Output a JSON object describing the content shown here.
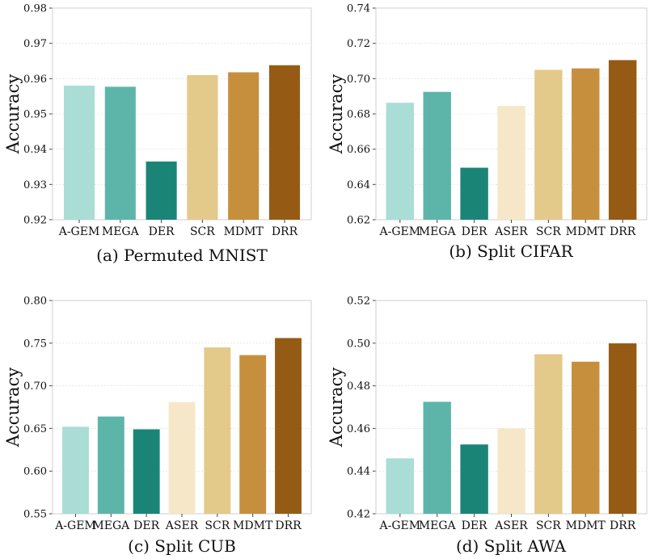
{
  "colors": {
    "A-GEM": "#a9ddd6",
    "MEGA": "#5db5aa",
    "DER": "#1a8577",
    "ASER": "#f5e7c8",
    "SCR": "#e3c98a",
    "MDMT": "#c68f3e",
    "DRR": "#955b14"
  },
  "chart_data": [
    {
      "type": "bar",
      "title": "(a) Permuted MNIST",
      "xlabel": "",
      "ylabel": "Accuracy",
      "categories": [
        "A-GEM",
        "MEGA",
        "DER",
        "SCR",
        "MDMT",
        "DRR"
      ],
      "values": [
        0.958,
        0.9577,
        0.9365,
        0.961,
        0.9618,
        0.9638
      ],
      "ylim": [
        0.92,
        0.98
      ],
      "yticks": [
        0.92,
        0.93,
        0.94,
        0.95,
        0.96,
        0.97,
        0.98
      ],
      "ytick_labels": [
        "0.92",
        "0.93",
        "0.94",
        "0.95",
        "0.96",
        "0.97",
        "0.98"
      ],
      "grid": true
    },
    {
      "type": "bar",
      "title": "(b) Split CIFAR",
      "xlabel": "",
      "ylabel": "Accuracy",
      "categories": [
        "A-GEM",
        "MEGA",
        "DER",
        "ASER",
        "SCR",
        "MDMT",
        "DRR"
      ],
      "values": [
        0.6863,
        0.6925,
        0.6495,
        0.6845,
        0.705,
        0.7058,
        0.7105
      ],
      "ylim": [
        0.62,
        0.74
      ],
      "yticks": [
        0.62,
        0.64,
        0.66,
        0.68,
        0.7,
        0.72,
        0.74
      ],
      "ytick_labels": [
        "0.62",
        "0.64",
        "0.66",
        "0.68",
        "0.70",
        "0.72",
        "0.74"
      ],
      "grid": true
    },
    {
      "type": "bar",
      "title": "(c) Split CUB",
      "xlabel": "",
      "ylabel": "Accuracy",
      "categories": [
        "A-GEM",
        "MEGA",
        "DER",
        "ASER",
        "SCR",
        "MDMT",
        "DRR"
      ],
      "values": [
        0.652,
        0.664,
        0.649,
        0.681,
        0.745,
        0.736,
        0.756
      ],
      "ylim": [
        0.55,
        0.8
      ],
      "yticks": [
        0.55,
        0.6,
        0.65,
        0.7,
        0.75,
        0.8
      ],
      "ytick_labels": [
        "0.55",
        "0.60",
        "0.65",
        "0.70",
        "0.75",
        "0.80"
      ],
      "grid": true
    },
    {
      "type": "bar",
      "title": "(d) Split AWA",
      "xlabel": "",
      "ylabel": "Accuracy",
      "categories": [
        "A-GEM",
        "MEGA",
        "DER",
        "ASER",
        "SCR",
        "MDMT",
        "DRR"
      ],
      "values": [
        0.446,
        0.4725,
        0.4525,
        0.46,
        0.4948,
        0.4913,
        0.4999
      ],
      "ylim": [
        0.42,
        0.52
      ],
      "yticks": [
        0.42,
        0.44,
        0.46,
        0.48,
        0.5,
        0.52
      ],
      "ytick_labels": [
        "0.42",
        "0.44",
        "0.46",
        "0.48",
        "0.50",
        "0.52"
      ],
      "grid": true
    }
  ]
}
